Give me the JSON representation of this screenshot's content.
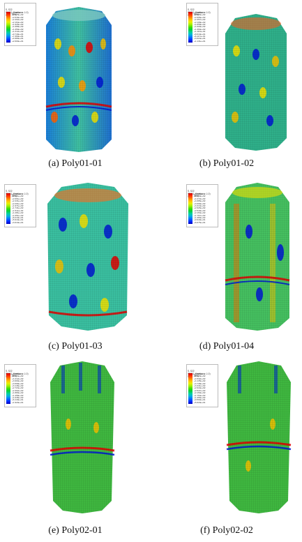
{
  "legend_header": [
    "S, S22",
    "SNEG, (fraction = -1.0)",
    "(Avg: 75%)"
  ],
  "panels": [
    {
      "caption": "(a)  Poly01-01",
      "legend_values": [
        "+3.116e+02",
        "+2.878e+02",
        "+2.640e+02",
        "+2.402e+02",
        "+2.164e+02",
        "+1.926e+02",
        "+1.688e+02",
        "+1.450e+02",
        "+1.212e+02",
        "+9.740e+01",
        "+7.360e+01",
        "+4.980e+01",
        "+2.600e+01"
      ]
    },
    {
      "caption": "(b)  Poly01-02",
      "legend_values": [
        "+3.105e+02",
        "+2.856e+02",
        "+2.606e+02",
        "+2.357e+02",
        "+2.108e+02",
        "+1.858e+02",
        "+1.609e+02",
        "+1.360e+02",
        "+1.110e+02",
        "+8.610e+01",
        "+6.117e+01",
        "+3.624e+01",
        "+1.131e+01"
      ]
    },
    {
      "caption": "(c)  Poly01-03",
      "legend_values": [
        "+3.121e+02",
        "+2.891e+02",
        "+2.661e+02",
        "+2.431e+02",
        "+2.201e+02",
        "+1.971e+02",
        "+1.741e+02",
        "+1.511e+02",
        "+1.281e+02",
        "+1.051e+02",
        "+8.210e+01",
        "+5.910e+01",
        "+3.610e+01"
      ]
    },
    {
      "caption": "(d)  Poly01-04",
      "legend_values": [
        "+5.245e+02",
        "+4.859e+02",
        "+4.472e+02",
        "+4.086e+02",
        "+3.699e+02",
        "+3.313e+02",
        "+2.926e+02",
        "+2.540e+02",
        "+2.153e+02",
        "+1.767e+02",
        "+1.380e+02",
        "+9.940e+01",
        "+6.075e+01"
      ]
    },
    {
      "caption": "(e)  Poly02-01",
      "legend_values": [
        "+5.256e+02",
        "+4.834e+02",
        "+4.412e+02",
        "+3.990e+02",
        "+3.568e+02",
        "+3.146e+02",
        "+2.724e+02",
        "+2.302e+02",
        "+1.880e+02",
        "+1.458e+02",
        "+1.036e+02",
        "+6.140e+01",
        "+1.920e+01"
      ]
    },
    {
      "caption": "(f)  Poly02-02",
      "legend_values": [
        "+5.326e+02",
        "+4.929e+02",
        "+4.532e+02",
        "+4.135e+02",
        "+3.738e+02",
        "+3.341e+02",
        "+2.944e+02",
        "+2.547e+02",
        "+2.150e+02",
        "+1.753e+02",
        "+1.356e+02",
        "+9.590e+01",
        "+5.620e+01"
      ]
    }
  ]
}
